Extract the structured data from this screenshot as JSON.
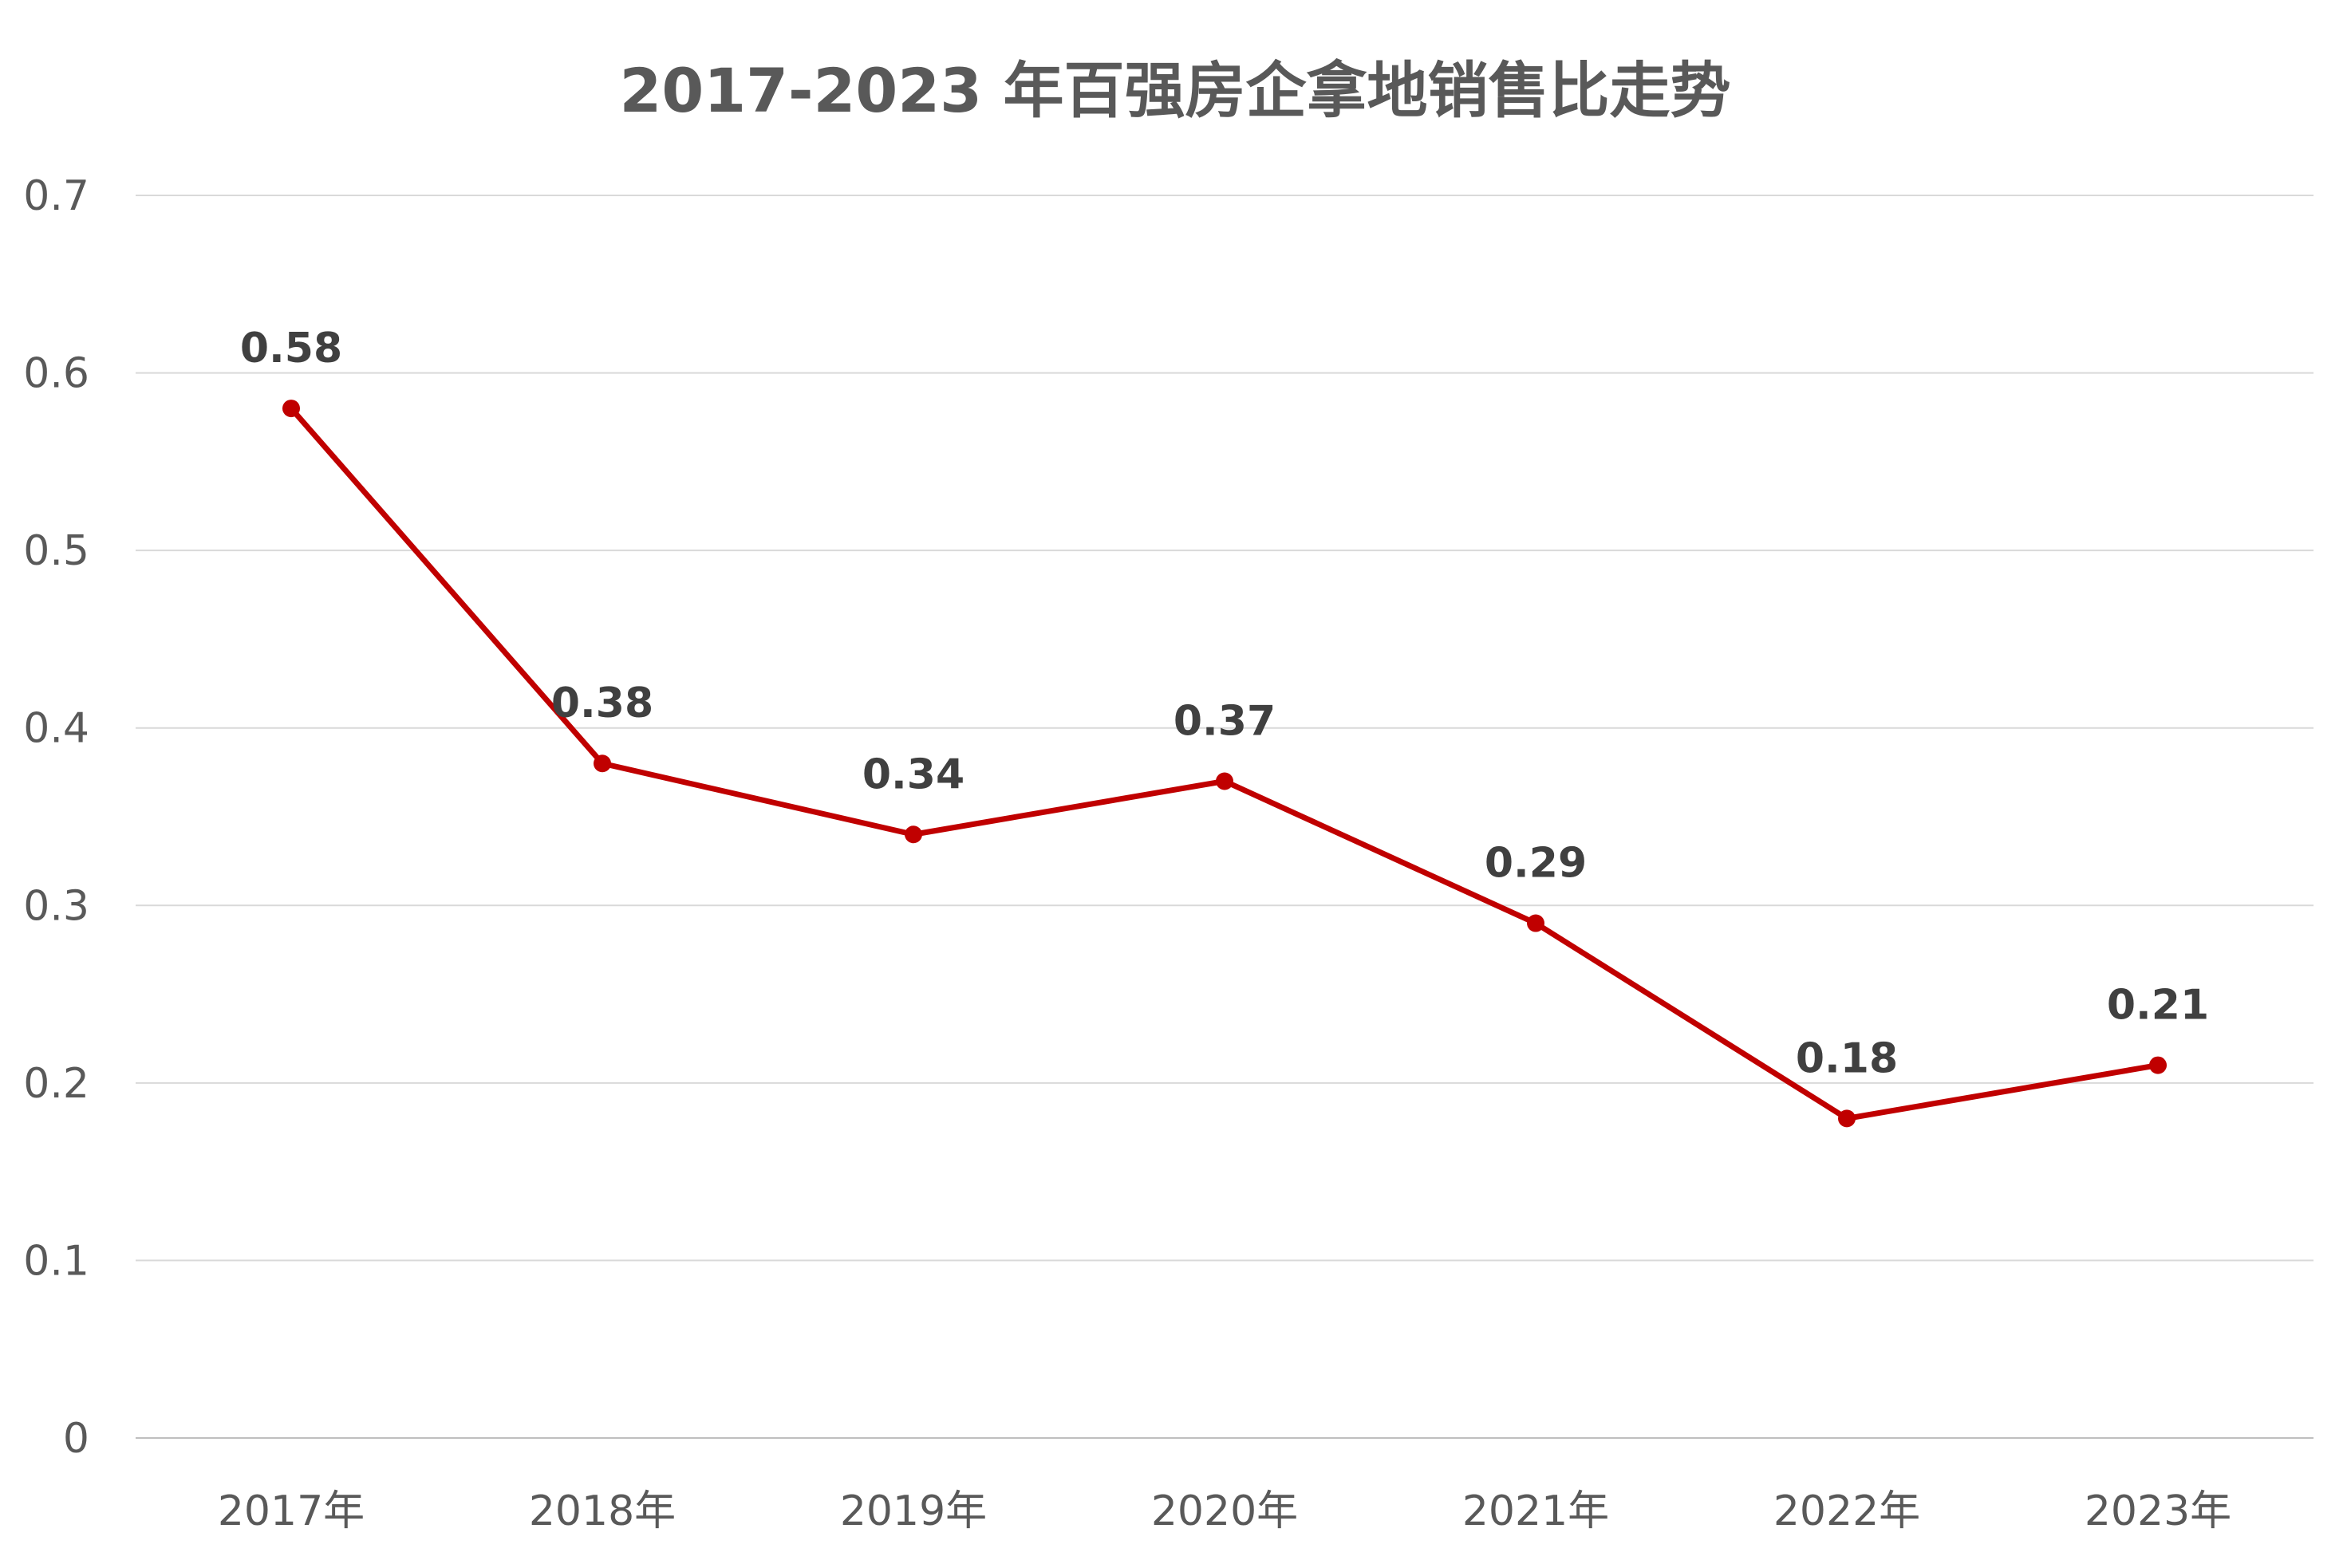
{
  "chart_data": {
    "type": "line",
    "title": "2017-2023 年百强房企拿地销售比走势",
    "categories": [
      "2017年",
      "2018年",
      "2019年",
      "2020年",
      "2021年",
      "2022年",
      "2023年"
    ],
    "series": [
      {
        "name": "拿地销售比",
        "values": [
          0.58,
          0.38,
          0.34,
          0.37,
          0.29,
          0.18,
          0.21
        ],
        "data_labels": [
          "0.58",
          "0.38",
          "0.34",
          "0.37",
          "0.29",
          "0.18",
          "0.21"
        ],
        "color": "#c00000"
      }
    ],
    "y_ticks": [
      0,
      0.1,
      0.2,
      0.3,
      0.4,
      0.5,
      0.6,
      0.7
    ],
    "y_tick_labels": [
      "0",
      "0.1",
      "0.2",
      "0.3",
      "0.4",
      "0.5",
      "0.6",
      "0.7"
    ],
    "ylim": [
      0,
      0.7
    ],
    "xlabel": "",
    "ylabel": "",
    "grid": true,
    "legend": "none"
  }
}
